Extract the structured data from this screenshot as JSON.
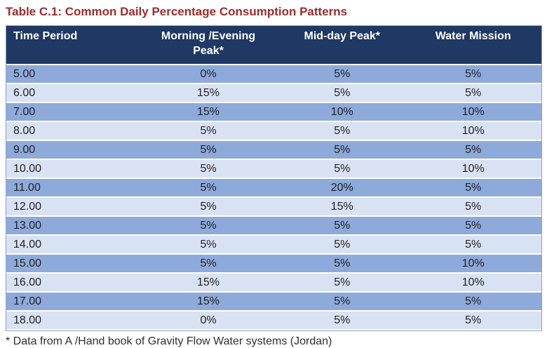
{
  "title": "Table C.1: Common Daily Percentage Consumption Patterns",
  "table": {
    "columns": [
      "Time Period",
      "Morning /Evening Peak*",
      "Mid-day Peak*",
      "Water Mission"
    ],
    "rows": [
      [
        "5.00",
        "0%",
        "5%",
        "5%"
      ],
      [
        "6.00",
        "15%",
        "5%",
        "5%"
      ],
      [
        "7.00",
        "15%",
        "10%",
        "10%"
      ],
      [
        "8.00",
        "5%",
        "5%",
        "10%"
      ],
      [
        "9.00",
        "5%",
        "5%",
        "5%"
      ],
      [
        "10.00",
        "5%",
        "5%",
        "10%"
      ],
      [
        "11.00",
        "5%",
        "20%",
        "5%"
      ],
      [
        "12.00",
        "5%",
        "15%",
        "5%"
      ],
      [
        "13.00",
        "5%",
        "5%",
        "5%"
      ],
      [
        "14.00",
        "5%",
        "5%",
        "5%"
      ],
      [
        "15.00",
        "5%",
        "5%",
        "10%"
      ],
      [
        "16.00",
        "15%",
        "5%",
        "10%"
      ],
      [
        "17.00",
        "15%",
        "5%",
        "5%"
      ],
      [
        "18.00",
        "0%",
        "5%",
        "5%"
      ]
    ],
    "column_widths_pct": [
      24.5,
      26.5,
      23.5,
      25.5
    ]
  },
  "footnote": "* Data from A /Hand book of Gravity Flow Water systems (Jordan)",
  "colors": {
    "title_red": "#9e2a2b",
    "header_bg": "#1f3864",
    "header_text": "#ffffff",
    "row_dark_blue": "#8eaadb",
    "row_light_blue": "#d9e2f3",
    "table_border": "#8ba0cc",
    "body_text": "#212121"
  }
}
